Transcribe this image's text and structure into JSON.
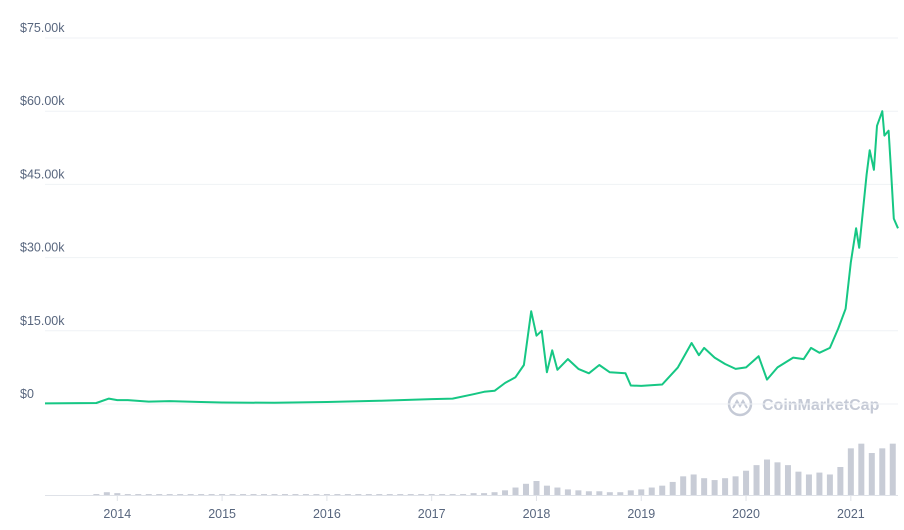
{
  "chart_data": [
    {
      "type": "line",
      "x": [
        2013.31,
        2013.8,
        2013.92,
        2014.0,
        2014.1,
        2014.3,
        2014.5,
        2014.8,
        2015.0,
        2015.5,
        2016.0,
        2016.5,
        2017.0,
        2017.2,
        2017.4,
        2017.5,
        2017.6,
        2017.7,
        2017.8,
        2017.88,
        2017.95,
        2018.0,
        2018.05,
        2018.1,
        2018.15,
        2018.2,
        2018.3,
        2018.4,
        2018.5,
        2018.6,
        2018.7,
        2018.85,
        2018.9,
        2019.0,
        2019.2,
        2019.35,
        2019.48,
        2019.55,
        2019.6,
        2019.7,
        2019.8,
        2019.9,
        2020.0,
        2020.12,
        2020.2,
        2020.3,
        2020.45,
        2020.55,
        2020.62,
        2020.7,
        2020.8,
        2020.88,
        2020.95,
        2021.0,
        2021.05,
        2021.08,
        2021.15,
        2021.18,
        2021.22,
        2021.25,
        2021.3,
        2021.32,
        2021.36,
        2021.38,
        2021.41,
        2021.45
      ],
      "series": [
        {
          "color": "#16c784",
          "values": [
            0.13,
            0.2,
            1.1,
            0.8,
            0.8,
            0.5,
            0.6,
            0.4,
            0.3,
            0.25,
            0.4,
            0.65,
            1.0,
            1.1,
            2.0,
            2.5,
            2.7,
            4.3,
            5.5,
            8.0,
            19.0,
            14.0,
            15.0,
            6.5,
            11.0,
            7.0,
            9.2,
            7.2,
            6.3,
            8.0,
            6.5,
            6.3,
            3.8,
            3.7,
            4.0,
            7.5,
            12.5,
            10.0,
            11.5,
            9.5,
            8.2,
            7.2,
            7.5,
            9.8,
            5.0,
            7.5,
            9.5,
            9.2,
            11.5,
            10.5,
            11.5,
            15.5,
            19.5,
            29,
            36,
            32,
            47,
            52,
            48,
            57,
            60,
            55,
            56,
            49,
            38,
            36
          ]
        }
      ],
      "xlim": [
        2013.31,
        2021.45
      ],
      "xticks": [
        2014,
        2015,
        2016,
        2017,
        2018,
        2019,
        2020,
        2021
      ],
      "ylim": [
        0,
        75
      ],
      "yticks": [
        {
          "value": 0,
          "label": "$0"
        },
        {
          "value": 15,
          "label": "$15.00k"
        },
        {
          "value": 30,
          "label": "$30.00k"
        },
        {
          "value": 45,
          "label": "$45.00k"
        },
        {
          "value": 60,
          "label": "$60.00k"
        },
        {
          "value": 75,
          "label": "$75.00k"
        }
      ],
      "grid": true,
      "watermark": "CoinMarketCap"
    },
    {
      "type": "bar",
      "color": "#c8ccd6",
      "x": [
        2013.4,
        2013.5,
        2013.6,
        2013.7,
        2013.8,
        2013.9,
        2014.0,
        2014.1,
        2014.2,
        2014.3,
        2014.4,
        2014.5,
        2014.6,
        2014.7,
        2014.8,
        2014.9,
        2015.0,
        2015.1,
        2015.2,
        2015.3,
        2015.4,
        2015.5,
        2015.6,
        2015.7,
        2015.8,
        2015.9,
        2016.0,
        2016.1,
        2016.2,
        2016.3,
        2016.4,
        2016.5,
        2016.6,
        2016.7,
        2016.8,
        2016.9,
        2017.0,
        2017.1,
        2017.2,
        2017.3,
        2017.4,
        2017.5,
        2017.6,
        2017.7,
        2017.8,
        2017.9,
        2018.0,
        2018.1,
        2018.2,
        2018.3,
        2018.4,
        2018.5,
        2018.6,
        2018.7,
        2018.8,
        2018.9,
        2019.0,
        2019.1,
        2019.2,
        2019.3,
        2019.4,
        2019.5,
        2019.6,
        2019.7,
        2019.8,
        2019.9,
        2020.0,
        2020.1,
        2020.2,
        2020.3,
        2020.4,
        2020.5,
        2020.6,
        2020.7,
        2020.8,
        2020.9,
        2021.0,
        2021.1,
        2021.2,
        2021.3,
        2021.4
      ],
      "values": [
        0,
        0,
        0,
        0,
        1,
        3,
        2,
        1,
        1,
        1,
        1,
        1,
        1,
        1,
        1,
        1,
        1,
        1,
        1,
        1,
        1,
        1,
        1,
        1,
        1,
        1,
        1,
        1,
        1,
        1,
        1,
        1,
        1,
        1,
        1,
        1,
        1,
        1,
        1,
        1,
        2,
        2,
        3,
        5,
        8,
        12,
        15,
        10,
        8,
        6,
        5,
        4,
        4,
        3,
        3,
        5,
        6,
        8,
        10,
        14,
        20,
        22,
        18,
        16,
        18,
        20,
        26,
        32,
        38,
        35,
        32,
        25,
        22,
        24,
        22,
        30,
        50,
        55,
        45,
        50,
        55
      ],
      "ylim": [
        0,
        75
      ]
    }
  ]
}
